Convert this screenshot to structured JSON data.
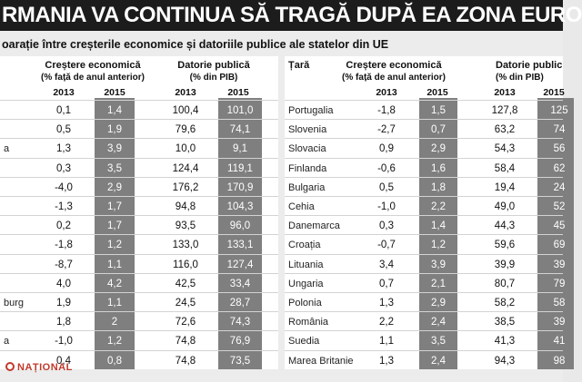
{
  "title": "RMANIA VA CONTINUA SĂ TRAGĂ DUPĂ EA ZONA EURO",
  "subtitle": "oarație între creșterile economice și datoriile publice ale statelor din UE",
  "headers": {
    "country": "Țară",
    "growth": "Creștere economică",
    "growth_unit": "(% față de anul anterior)",
    "debt": "Datorie publică",
    "debt_unit": "(% din PIB)",
    "debt_right": "Datorie public",
    "debt_unit_right": "(% din PIB)",
    "y2013": "2013",
    "y2015": "2015"
  },
  "left_rows": [
    {
      "country": "",
      "g13": "0,1",
      "g15": "1,4",
      "d13": "100,4",
      "d15": "101,0"
    },
    {
      "country": "",
      "g13": "0,5",
      "g15": "1,9",
      "d13": "79,6",
      "d15": "74,1"
    },
    {
      "country": "a",
      "g13": "1,3",
      "g15": "3,9",
      "d13": "10,0",
      "d15": "9,1"
    },
    {
      "country": "",
      "g13": "0,3",
      "g15": "3,5",
      "d13": "124,4",
      "d15": "119,1"
    },
    {
      "country": "",
      "g13": "-4,0",
      "g15": "2,9",
      "d13": "176,2",
      "d15": "170,9"
    },
    {
      "country": "",
      "g13": "-1,3",
      "g15": "1,7",
      "d13": "94,8",
      "d15": "104,3"
    },
    {
      "country": "",
      "g13": "0,2",
      "g15": "1,7",
      "d13": "93,5",
      "d15": "96,0"
    },
    {
      "country": "",
      "g13": "-1,8",
      "g15": "1,2",
      "d13": "133,0",
      "d15": "133,1"
    },
    {
      "country": "",
      "g13": "-8,7",
      "g15": "1,1",
      "d13": "116,0",
      "d15": "127,4"
    },
    {
      "country": "",
      "g13": "4,0",
      "g15": "4,2",
      "d13": "42,5",
      "d15": "33,4"
    },
    {
      "country": "burg",
      "g13": "1,9",
      "g15": "1,1",
      "d13": "24,5",
      "d15": "28,7"
    },
    {
      "country": "",
      "g13": "1,8",
      "g15": "2",
      "d13": "72,6",
      "d15": "74,3"
    },
    {
      "country": "a",
      "g13": "-1,0",
      "g15": "1,2",
      "d13": "74,8",
      "d15": "76,9"
    },
    {
      "country": "",
      "g13": "0,4",
      "g15": "0,8",
      "d13": "74,8",
      "d15": "73,5"
    }
  ],
  "right_rows": [
    {
      "country": "Portugalia",
      "g13": "-1,8",
      "g15": "1,5",
      "d13": "127,8",
      "d15": "125"
    },
    {
      "country": "Slovenia",
      "g13": "-2,7",
      "g15": "0,7",
      "d13": "63,2",
      "d15": "74"
    },
    {
      "country": "Slovacia",
      "g13": "0,9",
      "g15": "2,9",
      "d13": "54,3",
      "d15": "56"
    },
    {
      "country": "Finlanda",
      "g13": "-0,6",
      "g15": "1,6",
      "d13": "58,4",
      "d15": "62"
    },
    {
      "country": "Bulgaria",
      "g13": "0,5",
      "g15": "1,8",
      "d13": "19,4",
      "d15": "24"
    },
    {
      "country": "Cehia",
      "g13": "-1,0",
      "g15": "2,2",
      "d13": "49,0",
      "d15": "52"
    },
    {
      "country": "Danemarca",
      "g13": "0,3",
      "g15": "1,4",
      "d13": "44,3",
      "d15": "45"
    },
    {
      "country": "Croația",
      "g13": "-0,7",
      "g15": "1,2",
      "d13": "59,6",
      "d15": "69"
    },
    {
      "country": "Lituania",
      "g13": "3,4",
      "g15": "3,9",
      "d13": "39,9",
      "d15": "39"
    },
    {
      "country": "Ungaria",
      "g13": "0,7",
      "g15": "2,1",
      "d13": "80,7",
      "d15": "79"
    },
    {
      "country": "Polonia",
      "g13": "1,3",
      "g15": "2,9",
      "d13": "58,2",
      "d15": "58"
    },
    {
      "country": "România",
      "g13": "2,2",
      "g15": "2,4",
      "d13": "38,5",
      "d15": "39"
    },
    {
      "country": "Suedia",
      "g13": "1,1",
      "g15": "3,5",
      "d13": "41,3",
      "d15": "41"
    },
    {
      "country": "Marea Britanie",
      "g13": "1,3",
      "g15": "2,4",
      "d13": "94,3",
      "d15": "98"
    }
  ],
  "logo": "NAȚIONAL"
}
